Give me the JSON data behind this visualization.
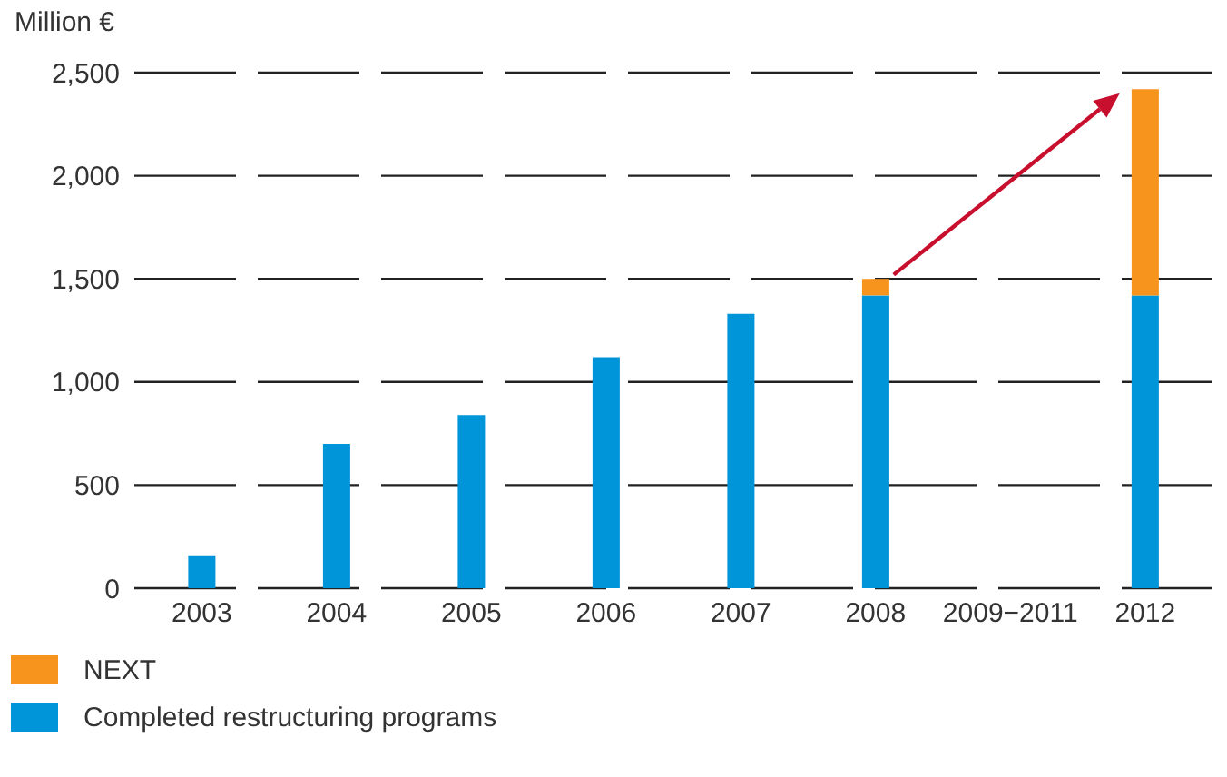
{
  "chart_data": {
    "type": "bar",
    "ylabel": "Million €",
    "stacked": true,
    "categories": [
      "2003",
      "2004",
      "2005",
      "2006",
      "2007",
      "2008",
      "2009−2011",
      "2012"
    ],
    "series": [
      {
        "name": "Completed restructuring programs",
        "color": "#0095d9",
        "values": [
          160,
          700,
          840,
          1120,
          1330,
          1420,
          null,
          1420
        ]
      },
      {
        "name": "NEXT",
        "color": "#f7941d",
        "values": [
          null,
          null,
          null,
          null,
          null,
          80,
          null,
          1000
        ]
      }
    ],
    "ylim": [
      0,
      2500
    ],
    "yticks": [
      {
        "value": 0,
        "label": "0"
      },
      {
        "value": 500,
        "label": "500"
      },
      {
        "value": 1000,
        "label": "1,000"
      },
      {
        "value": 1500,
        "label": "1,500"
      },
      {
        "value": 2000,
        "label": "2,000"
      },
      {
        "value": 2500,
        "label": "2,500"
      }
    ],
    "grid": "y",
    "legend": "bottom"
  }
}
